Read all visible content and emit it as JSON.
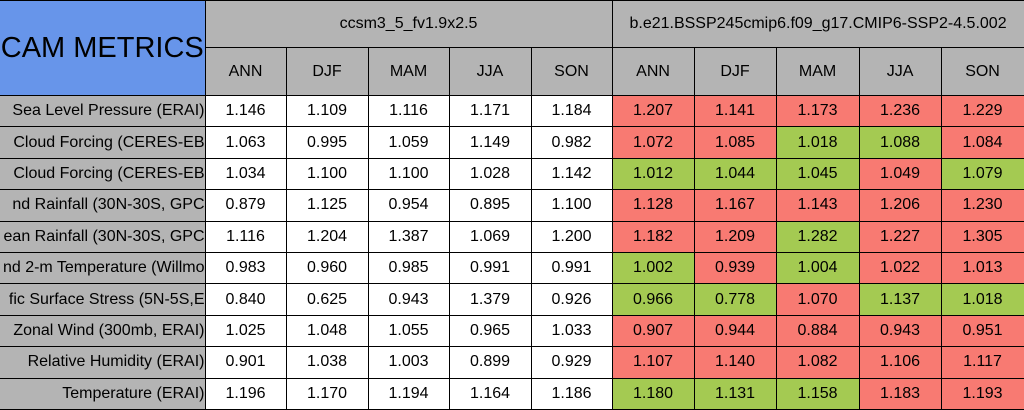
{
  "colors": {
    "header_blue": "#6795ea",
    "header_gray": "#b4b4b4",
    "cell_white": "#ffffff",
    "worse_red": "#f87a72",
    "better_green": "#a4ca52",
    "border_black": "#000000",
    "text_black": "#000000"
  },
  "table": {
    "corner_label": "CAM METRICS",
    "groups": [
      {
        "name": "ccsm3_5_fv1.9x2.5",
        "seasons": [
          "ANN",
          "DJF",
          "MAM",
          "JJA",
          "SON"
        ]
      },
      {
        "name": "b.e21.BSSP245cmip6.f09_g17.CMIP6-SSP2-4.5.002",
        "seasons": [
          "ANN",
          "DJF",
          "MAM",
          "JJA",
          "SON"
        ]
      }
    ],
    "rows": [
      {
        "label": "Sea Level Pressure (ERAI)",
        "baseline": [
          "1.146",
          "1.109",
          "1.116",
          "1.171",
          "1.184"
        ],
        "case": [
          {
            "value": "1.207",
            "state": "worse"
          },
          {
            "value": "1.141",
            "state": "worse"
          },
          {
            "value": "1.173",
            "state": "worse"
          },
          {
            "value": "1.236",
            "state": "worse"
          },
          {
            "value": "1.229",
            "state": "worse"
          }
        ]
      },
      {
        "label": "Cloud Forcing (CERES-EB",
        "baseline": [
          "1.063",
          "0.995",
          "1.059",
          "1.149",
          "0.982"
        ],
        "case": [
          {
            "value": "1.072",
            "state": "worse"
          },
          {
            "value": "1.085",
            "state": "worse"
          },
          {
            "value": "1.018",
            "state": "better"
          },
          {
            "value": "1.088",
            "state": "better"
          },
          {
            "value": "1.084",
            "state": "worse"
          }
        ]
      },
      {
        "label": "Cloud Forcing (CERES-EB",
        "baseline": [
          "1.034",
          "1.100",
          "1.100",
          "1.028",
          "1.142"
        ],
        "case": [
          {
            "value": "1.012",
            "state": "better"
          },
          {
            "value": "1.044",
            "state": "better"
          },
          {
            "value": "1.045",
            "state": "better"
          },
          {
            "value": "1.049",
            "state": "worse"
          },
          {
            "value": "1.079",
            "state": "better"
          }
        ]
      },
      {
        "label": "nd Rainfall (30N-30S, GPC",
        "baseline": [
          "0.879",
          "1.125",
          "0.954",
          "0.895",
          "1.100"
        ],
        "case": [
          {
            "value": "1.128",
            "state": "worse"
          },
          {
            "value": "1.167",
            "state": "worse"
          },
          {
            "value": "1.143",
            "state": "worse"
          },
          {
            "value": "1.206",
            "state": "worse"
          },
          {
            "value": "1.230",
            "state": "worse"
          }
        ]
      },
      {
        "label": "ean Rainfall (30N-30S, GPC",
        "baseline": [
          "1.116",
          "1.204",
          "1.387",
          "1.069",
          "1.200"
        ],
        "case": [
          {
            "value": "1.182",
            "state": "worse"
          },
          {
            "value": "1.209",
            "state": "worse"
          },
          {
            "value": "1.282",
            "state": "better"
          },
          {
            "value": "1.227",
            "state": "worse"
          },
          {
            "value": "1.305",
            "state": "worse"
          }
        ]
      },
      {
        "label": "nd 2-m Temperature (Willmo",
        "baseline": [
          "0.983",
          "0.960",
          "0.985",
          "0.991",
          "0.991"
        ],
        "case": [
          {
            "value": "1.002",
            "state": "better"
          },
          {
            "value": "0.939",
            "state": "worse"
          },
          {
            "value": "1.004",
            "state": "better"
          },
          {
            "value": "1.022",
            "state": "worse"
          },
          {
            "value": "1.013",
            "state": "worse"
          }
        ]
      },
      {
        "label": "fic Surface Stress (5N-5S,E",
        "baseline": [
          "0.840",
          "0.625",
          "0.943",
          "1.379",
          "0.926"
        ],
        "case": [
          {
            "value": "0.966",
            "state": "better"
          },
          {
            "value": "0.778",
            "state": "better"
          },
          {
            "value": "1.070",
            "state": "worse"
          },
          {
            "value": "1.137",
            "state": "better"
          },
          {
            "value": "1.018",
            "state": "better"
          }
        ]
      },
      {
        "label": "Zonal Wind (300mb, ERAI)",
        "baseline": [
          "1.025",
          "1.048",
          "1.055",
          "0.965",
          "1.033"
        ],
        "case": [
          {
            "value": "0.907",
            "state": "worse"
          },
          {
            "value": "0.944",
            "state": "worse"
          },
          {
            "value": "0.884",
            "state": "worse"
          },
          {
            "value": "0.943",
            "state": "worse"
          },
          {
            "value": "0.951",
            "state": "worse"
          }
        ]
      },
      {
        "label": "Relative Humidity (ERAI)",
        "baseline": [
          "0.901",
          "1.038",
          "1.003",
          "0.899",
          "0.929"
        ],
        "case": [
          {
            "value": "1.107",
            "state": "worse"
          },
          {
            "value": "1.140",
            "state": "worse"
          },
          {
            "value": "1.082",
            "state": "worse"
          },
          {
            "value": "1.106",
            "state": "worse"
          },
          {
            "value": "1.117",
            "state": "worse"
          }
        ]
      },
      {
        "label": "Temperature (ERAI)",
        "baseline": [
          "1.196",
          "1.170",
          "1.194",
          "1.164",
          "1.186"
        ],
        "case": [
          {
            "value": "1.180",
            "state": "better"
          },
          {
            "value": "1.131",
            "state": "better"
          },
          {
            "value": "1.158",
            "state": "better"
          },
          {
            "value": "1.183",
            "state": "worse"
          },
          {
            "value": "1.193",
            "state": "worse"
          }
        ]
      }
    ]
  }
}
